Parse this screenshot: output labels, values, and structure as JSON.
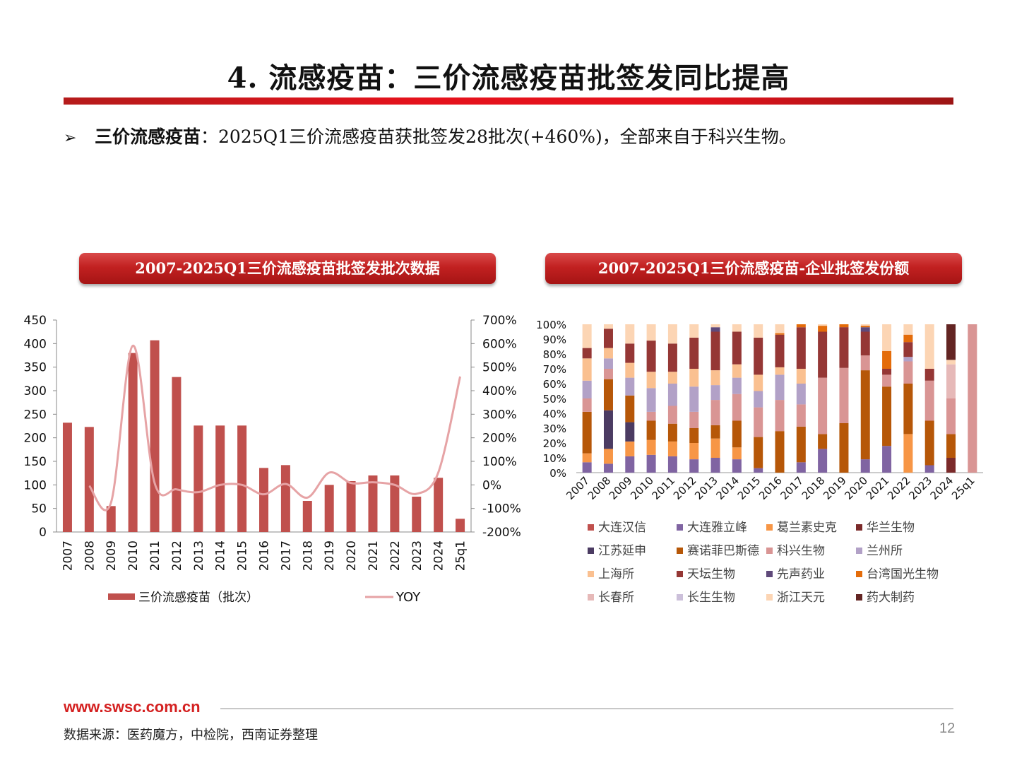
{
  "header": {
    "title": "4. 流感疫苗：三价流感疫苗批签发同比提高"
  },
  "bullet": {
    "marker": "➢",
    "lead": "三价流感疫苗",
    "text": "：2025Q1三价流感疫苗获批签发28批次(+460%)，全部来自于科兴生物。"
  },
  "panels": {
    "left_title": "2007-2025Q1三价流感疫苗批签发批次数据",
    "right_title": "2007-2025Q1三价流感疫苗-企业批签发份额"
  },
  "colors": {
    "bar": "#c0504d",
    "yoy": "#e6a3a5",
    "accent": "#d42020"
  },
  "chart_data": [
    {
      "type": "bar",
      "categories": [
        "2007",
        "2008",
        "2009",
        "2010",
        "2011",
        "2012",
        "2013",
        "2014",
        "2015",
        "2016",
        "2017",
        "2018",
        "2019",
        "2020",
        "2021",
        "2022",
        "2023",
        "2024",
        "25q1"
      ],
      "series": [
        {
          "name": "三价流感疫苗（批次）",
          "type": "bar",
          "axis": "left",
          "values": [
            232,
            223,
            55,
            380,
            407,
            329,
            226,
            226,
            226,
            136,
            142,
            66,
            100,
            108,
            120,
            120,
            75,
            115,
            28
          ]
        },
        {
          "name": "YOY",
          "type": "line",
          "axis": "right",
          "values": [
            null,
            -4,
            -75,
            591,
            7,
            -19,
            -31,
            0,
            0,
            -40,
            4,
            -54,
            52,
            8,
            11,
            0,
            -38,
            53,
            460
          ]
        }
      ],
      "yticks_left": [
        "0",
        "50",
        "100",
        "150",
        "200",
        "250",
        "300",
        "350",
        "400",
        "450"
      ],
      "yticks_right": [
        "-200%",
        "-100%",
        "0%",
        "100%",
        "200%",
        "300%",
        "400%",
        "500%",
        "600%",
        "700%"
      ],
      "ylim_left": [
        0,
        450
      ],
      "ylim_right": [
        -200,
        700
      ],
      "legend": "bottom"
    },
    {
      "type": "bar",
      "stacked": true,
      "percent": true,
      "categories": [
        "2007",
        "2008",
        "2009",
        "2010",
        "2011",
        "2012",
        "2013",
        "2014",
        "2015",
        "2016",
        "2017",
        "2018",
        "2019",
        "2020",
        "2021",
        "2022",
        "2023",
        "2024",
        "25q1"
      ],
      "yticks": [
        "0%",
        "10%",
        "20%",
        "30%",
        "40%",
        "50%",
        "60%",
        "70%",
        "80%",
        "90%",
        "100%"
      ],
      "series": [
        {
          "name": "大连汉信",
          "color": "#c0504d",
          "values": [
            0,
            0,
            0,
            0,
            0,
            0,
            0,
            0,
            0,
            0,
            0,
            0,
            0,
            0,
            0,
            0,
            0,
            0,
            0
          ]
        },
        {
          "name": "大连雅立峰",
          "color": "#8064a2",
          "values": [
            7,
            6,
            11,
            12,
            11,
            9,
            10,
            9,
            3,
            0,
            7,
            16,
            0,
            9,
            18,
            0,
            5,
            0,
            0
          ]
        },
        {
          "name": "葛兰素史克",
          "color": "#f79646",
          "values": [
            6,
            10,
            10,
            10,
            10,
            11,
            13,
            8,
            0,
            0,
            0,
            0,
            0,
            0,
            0,
            26,
            0,
            0,
            0
          ]
        },
        {
          "name": "华兰生物",
          "color": "#7b2a2a",
          "values": [
            0,
            0,
            0,
            0,
            0,
            0,
            0,
            0,
            0,
            0,
            0,
            0,
            0,
            0,
            0,
            0,
            0,
            10,
            0
          ]
        },
        {
          "name": "江苏延申",
          "color": "#4b3b62",
          "values": [
            0,
            26,
            13,
            0,
            0,
            0,
            0,
            0,
            0,
            0,
            0,
            0,
            0,
            0,
            0,
            0,
            0,
            0,
            0
          ]
        },
        {
          "name": "赛诺菲巴斯德",
          "color": "#b65708",
          "values": [
            28,
            21,
            18,
            13,
            12,
            10,
            9,
            18,
            21,
            28,
            24,
            10,
            34,
            60,
            40,
            34,
            30,
            16,
            0
          ]
        },
        {
          "name": "科兴生物",
          "color": "#d99594",
          "values": [
            9,
            7,
            0,
            6,
            12,
            11,
            17,
            18,
            20,
            21,
            15,
            38,
            38,
            10,
            8,
            15,
            27,
            24,
            100
          ]
        },
        {
          "name": "兰州所",
          "color": "#b2a1c7",
          "values": [
            12,
            7,
            12,
            16,
            15,
            17,
            10,
            11,
            11,
            17,
            14,
            0,
            0,
            0,
            0,
            3,
            0,
            0,
            0
          ]
        },
        {
          "name": "上海所",
          "color": "#fac090",
          "values": [
            15,
            7,
            10,
            11,
            8,
            12,
            10,
            9,
            11,
            5,
            10,
            0,
            0,
            0,
            0,
            0,
            0,
            0,
            0
          ]
        },
        {
          "name": "天坛生物",
          "color": "#953735",
          "values": [
            7,
            13,
            13,
            21,
            19,
            21,
            26,
            22,
            25,
            22,
            28,
            31,
            28,
            16,
            4,
            10,
            8,
            0,
            0
          ]
        },
        {
          "name": "先声药业",
          "color": "#5f497a",
          "values": [
            0,
            0,
            0,
            0,
            0,
            0,
            3,
            0,
            0,
            0,
            0,
            0,
            0,
            3,
            0,
            0,
            0,
            0,
            0
          ]
        },
        {
          "name": "台湾国光生物",
          "color": "#e46c0a",
          "values": [
            0,
            0,
            0,
            0,
            0,
            0,
            0,
            0,
            0,
            1,
            2,
            4,
            2,
            1,
            12,
            5,
            0,
            0,
            0
          ]
        },
        {
          "name": "长春所",
          "color": "#e6b9b8",
          "values": [
            0,
            0,
            0,
            0,
            0,
            0,
            0,
            0,
            0,
            0,
            0,
            0,
            0,
            0,
            0,
            0,
            0,
            23,
            0
          ]
        },
        {
          "name": "长生生物",
          "color": "#ccc0da",
          "values": [
            0,
            0,
            0,
            0,
            0,
            0,
            0,
            0,
            0,
            0,
            0,
            0,
            0,
            0,
            0,
            0,
            0,
            0,
            0
          ]
        },
        {
          "name": "浙江天元",
          "color": "#fcd5b4",
          "values": [
            16,
            3,
            13,
            11,
            13,
            9,
            2,
            5,
            9,
            6,
            0,
            1,
            0,
            1,
            18,
            7,
            30,
            3,
            0
          ]
        },
        {
          "name": "药大制药",
          "color": "#632523",
          "values": [
            0,
            0,
            0,
            0,
            0,
            0,
            0,
            0,
            0,
            0,
            0,
            0,
            0,
            0,
            0,
            0,
            0,
            24,
            0
          ]
        }
      ],
      "legend": "bottom"
    }
  ],
  "footer": {
    "url": "www.swsc.com.cn",
    "source": "数据来源：医药魔方，中检院，西南证券整理",
    "page": "12"
  }
}
